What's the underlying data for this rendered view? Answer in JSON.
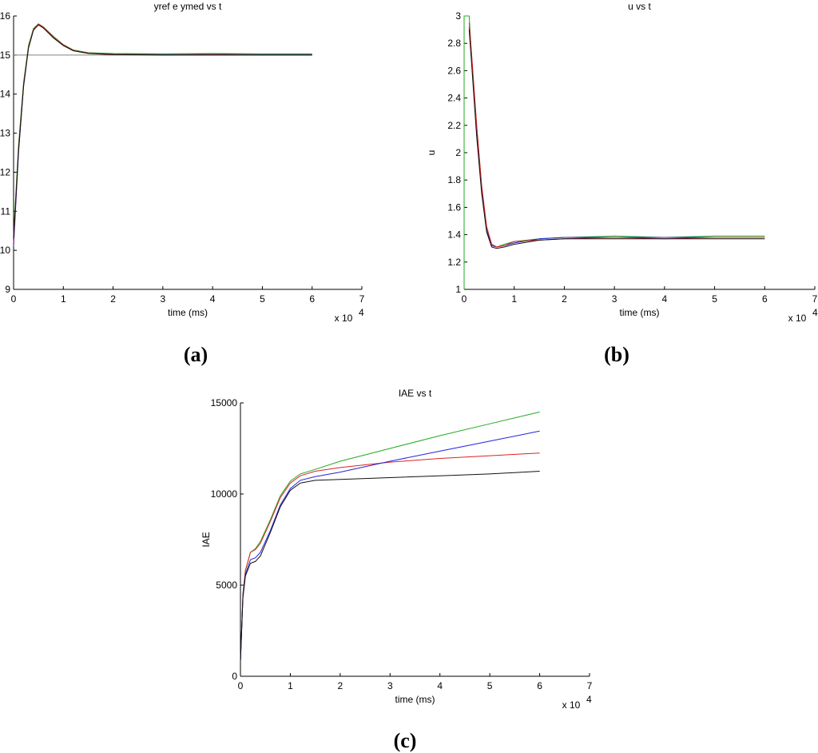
{
  "figure": {
    "panel_labels": [
      "(a)",
      "(b)",
      "(c)"
    ]
  },
  "chart_data": [
    {
      "type": "line",
      "title": "yref  e ymed vs t",
      "xlabel": "time (ms)",
      "ylabel": "",
      "x_multiplier": "x 10",
      "x_multiplier_exp": "4",
      "xlim": [
        0,
        7
      ],
      "ylim": [
        9,
        16
      ],
      "xticks": [
        0,
        1,
        2,
        3,
        4,
        5,
        6,
        7
      ],
      "yticks": [
        9,
        10,
        11,
        12,
        13,
        14,
        15,
        16
      ],
      "grid": false,
      "series": [
        {
          "color": "#808080",
          "x": [
            0,
            6
          ],
          "y": [
            15,
            15
          ]
        },
        {
          "color": "#2222dd",
          "x": [
            0,
            0.1,
            0.2,
            0.3,
            0.4,
            0.5,
            0.6,
            0.8,
            1.0,
            1.2,
            1.5,
            2,
            3,
            4,
            5,
            6
          ],
          "y": [
            10.1,
            12.5,
            14.2,
            15.2,
            15.65,
            15.78,
            15.7,
            15.45,
            15.25,
            15.12,
            15.05,
            15.03,
            15.02,
            15.03,
            15.02,
            15.02
          ]
        },
        {
          "color": "#22aa22",
          "x": [
            0,
            0.1,
            0.2,
            0.3,
            0.4,
            0.5,
            0.6,
            0.8,
            1.0,
            1.2,
            1.5,
            2,
            3,
            4,
            5,
            6
          ],
          "y": [
            10.4,
            12.7,
            14.3,
            15.25,
            15.68,
            15.8,
            15.72,
            15.48,
            15.27,
            15.13,
            15.06,
            15.04,
            15.03,
            15.04,
            15.03,
            15.03
          ]
        },
        {
          "color": "#dd2222",
          "x": [
            0,
            0.1,
            0.2,
            0.3,
            0.4,
            0.5,
            0.6,
            0.8,
            1.0,
            1.2,
            1.5,
            2,
            3,
            4,
            5,
            6
          ],
          "y": [
            10.2,
            12.6,
            14.25,
            15.2,
            15.66,
            15.79,
            15.71,
            15.46,
            15.26,
            15.12,
            15.05,
            15.02,
            15.0,
            15.01,
            15.0,
            15.0
          ]
        },
        {
          "color": "#111111",
          "x": [
            0,
            0.1,
            0.2,
            0.3,
            0.4,
            0.5,
            0.6,
            0.8,
            1.0,
            1.2,
            1.5,
            2,
            3,
            4,
            5,
            6
          ],
          "y": [
            10.3,
            12.55,
            14.2,
            15.18,
            15.64,
            15.77,
            15.69,
            15.44,
            15.24,
            15.11,
            15.04,
            15.01,
            15.0,
            15.0,
            15.0,
            15.0
          ]
        }
      ]
    },
    {
      "type": "line",
      "title": "u vs t",
      "xlabel": "time (ms)",
      "ylabel": "u",
      "x_multiplier": "x 10",
      "x_multiplier_exp": "4",
      "xlim": [
        0,
        7
      ],
      "ylim": [
        1,
        3
      ],
      "xticks": [
        0,
        1,
        2,
        3,
        4,
        5,
        6,
        7
      ],
      "yticks": [
        1,
        1.2,
        1.4,
        1.6,
        1.8,
        2,
        2.2,
        2.4,
        2.6,
        2.8,
        3
      ],
      "grid": false,
      "series": [
        {
          "color": "#22aa22",
          "x": [
            0,
            0,
            0.1,
            0.15,
            0.25,
            0.35,
            0.45,
            0.55,
            0.65,
            0.8,
            1.0,
            1.5,
            2,
            3,
            4,
            5,
            6
          ],
          "y": [
            1.0,
            3.0,
            3.0,
            2.7,
            2.2,
            1.75,
            1.45,
            1.33,
            1.31,
            1.33,
            1.35,
            1.37,
            1.38,
            1.39,
            1.38,
            1.39,
            1.39
          ]
        },
        {
          "color": "#2222dd",
          "x": [
            0.1,
            0.15,
            0.25,
            0.35,
            0.45,
            0.55,
            0.65,
            0.8,
            1.0,
            1.5,
            2,
            3,
            4,
            5,
            6
          ],
          "y": [
            2.92,
            2.68,
            2.15,
            1.72,
            1.43,
            1.32,
            1.31,
            1.32,
            1.34,
            1.37,
            1.38,
            1.38,
            1.38,
            1.38,
            1.38
          ]
        },
        {
          "color": "#dd2222",
          "x": [
            0.1,
            0.15,
            0.25,
            0.35,
            0.45,
            0.55,
            0.65,
            0.8,
            1.0,
            1.5,
            2,
            3,
            4,
            5,
            6
          ],
          "y": [
            2.95,
            2.72,
            2.2,
            1.76,
            1.46,
            1.33,
            1.31,
            1.32,
            1.35,
            1.36,
            1.37,
            1.38,
            1.37,
            1.38,
            1.38
          ]
        },
        {
          "color": "#111111",
          "x": [
            0.1,
            0.15,
            0.25,
            0.35,
            0.45,
            0.55,
            0.65,
            0.8,
            1.0,
            1.5,
            2,
            3,
            4,
            5,
            6
          ],
          "y": [
            2.9,
            2.65,
            2.12,
            1.7,
            1.42,
            1.31,
            1.3,
            1.31,
            1.33,
            1.36,
            1.37,
            1.37,
            1.37,
            1.37,
            1.37
          ]
        }
      ]
    },
    {
      "type": "line",
      "title": "IAE vs t",
      "xlabel": "time (ms)",
      "ylabel": "IAE",
      "x_multiplier": "x 10",
      "x_multiplier_exp": "4",
      "xlim": [
        0,
        7
      ],
      "ylim": [
        0,
        15000
      ],
      "xticks": [
        0,
        1,
        2,
        3,
        4,
        5,
        6,
        7
      ],
      "yticks": [
        0,
        5000,
        10000,
        15000
      ],
      "grid": false,
      "series": [
        {
          "color": "#22aa22",
          "x": [
            0,
            0.05,
            0.1,
            0.2,
            0.3,
            0.4,
            0.6,
            0.8,
            1.0,
            1.2,
            1.5,
            2,
            3,
            4,
            5,
            6
          ],
          "y": [
            800,
            4500,
            5800,
            6800,
            7000,
            7400,
            8600,
            9900,
            10700,
            11100,
            11350,
            11800,
            12500,
            13200,
            13850,
            14500
          ]
        },
        {
          "color": "#dd2222",
          "x": [
            0,
            0.05,
            0.1,
            0.2,
            0.3,
            0.4,
            0.6,
            0.8,
            1.0,
            1.2,
            1.5,
            2,
            3,
            4,
            5,
            6
          ],
          "y": [
            800,
            4500,
            5800,
            6800,
            6950,
            7300,
            8500,
            9800,
            10600,
            11000,
            11250,
            11450,
            11750,
            11950,
            12100,
            12250
          ]
        },
        {
          "color": "#2222dd",
          "x": [
            0,
            0.05,
            0.1,
            0.2,
            0.3,
            0.4,
            0.6,
            0.8,
            1.0,
            1.2,
            1.5,
            2,
            3,
            4,
            5,
            6
          ],
          "y": [
            800,
            4400,
            5600,
            6400,
            6500,
            6800,
            8000,
            9400,
            10300,
            10750,
            10950,
            11200,
            11800,
            12350,
            12900,
            13450
          ]
        },
        {
          "color": "#111111",
          "x": [
            0,
            0.05,
            0.1,
            0.2,
            0.3,
            0.4,
            0.6,
            0.8,
            1.0,
            1.2,
            1.5,
            2,
            3,
            4,
            5,
            6
          ],
          "y": [
            800,
            4300,
            5500,
            6200,
            6300,
            6600,
            7900,
            9300,
            10200,
            10600,
            10750,
            10800,
            10900,
            11000,
            11100,
            11250
          ]
        }
      ]
    }
  ]
}
